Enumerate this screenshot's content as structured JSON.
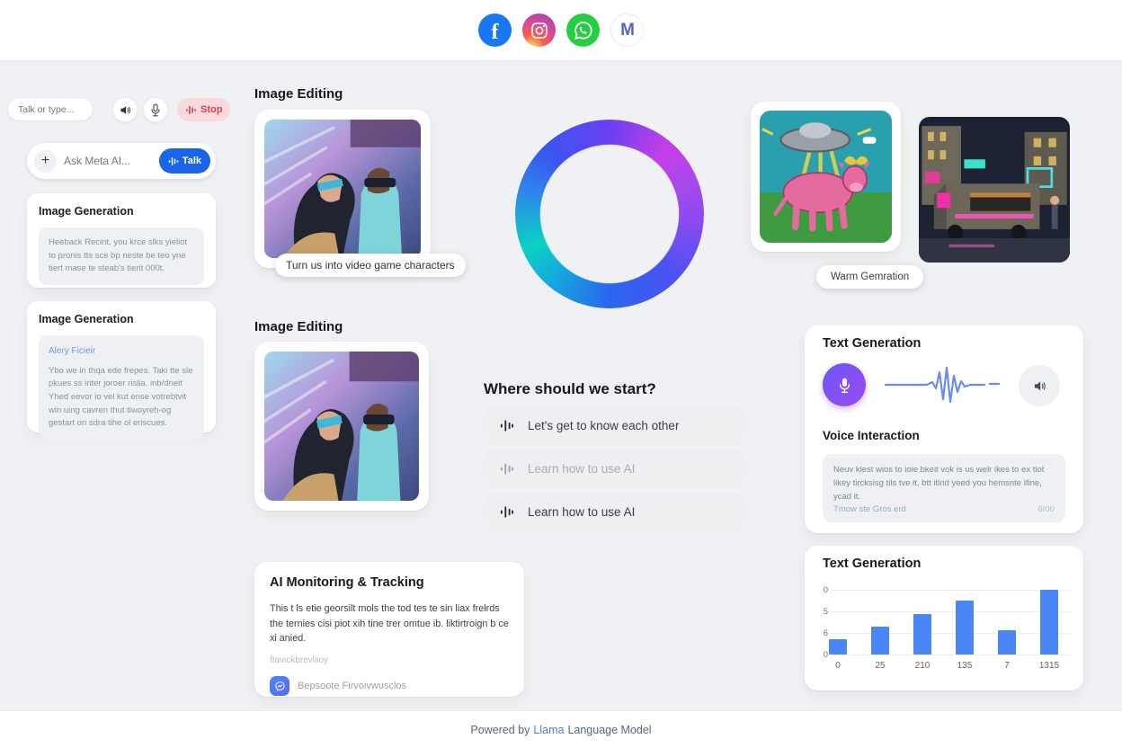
{
  "header": {
    "icons": [
      "facebook-icon",
      "instagram-icon",
      "whatsapp-icon",
      "meta-icon"
    ]
  },
  "sidebar": {
    "talk_input_placeholder": "Talk or type...",
    "speaker_icon": "speaker-icon",
    "mic_icon": "microphone-icon",
    "stop_label": "Stop",
    "ask": {
      "plus": "+",
      "placeholder": "Ask Meta AI...",
      "talk_label": "Talk"
    },
    "cards": [
      {
        "title": "Image Generation",
        "body": "Heeback Recint, you krce slks yieliot to pronis tts sce bp neste be teo yne tiert mase te steab's tierit 000t."
      },
      {
        "title": "Image Generation",
        "link": "Alery Ficieir",
        "body": "Ybo we in thqa ede frepes. Taki tte sle pkues ss inter joroer rislia. inb/dneit Yhed eevor io vel kut ense votrebtvit win uing cavren thut tiwoyreh-og gestart on sdra tihe ol eriscues."
      }
    ]
  },
  "main": {
    "image_editing_1": {
      "title": "Image Editing",
      "tooltip": "Turn us into video game characters"
    },
    "image_editing_2": {
      "title": "Image Editing"
    },
    "start": {
      "title": "Where should we start?",
      "options": [
        "Let's get to know each other",
        "Learn how to use AI",
        "Learn how to use AI"
      ]
    },
    "monitoring": {
      "title": "AI Monitoring & Tracking",
      "body": "This t ls etie georsilt mols the tod tes te sin liax frelrds the ternies cisi piot xih tine trer omtue ib. liktirtroign b ce xi anied.",
      "subtext": "ftovickbrevliioy",
      "app_link": "Bepsoote Firvoivwusclos"
    }
  },
  "right": {
    "warm_label": "Warm Gemration",
    "voice_card": {
      "title": "Text Generation",
      "subtitle": "Voice Interaction",
      "body": "Neuv klest wios to ioie bkeit vok is us welr ikes to ex tiot likey tircksisg tils tve it, btt itlnd yeed you hemsnte ifine, ycad it.",
      "footer_link": "Tmow ste Gros erd",
      "footer_value": "6I00"
    },
    "chart_card_title": "Text Generation"
  },
  "chart_data": {
    "type": "bar",
    "title": "Text Generation",
    "categories": [
      "0",
      "25",
      "210",
      "135",
      "7",
      "1315"
    ],
    "values": [
      2.3,
      4.3,
      6.3,
      8.3,
      3.7,
      10
    ],
    "ylim": [
      0,
      10
    ],
    "y_ticks_top_to_bottom": [
      "0",
      "5",
      "6",
      "0"
    ],
    "bar_color": "#4a86f5",
    "grid": true,
    "xlabel": "",
    "ylabel": ""
  },
  "footer": {
    "prefix": "Powered by ",
    "link": "Llama",
    "suffix": " Language Model"
  },
  "colors": {
    "accent_blue": "#1b63e8",
    "stop_red": "#d2434f",
    "chart_bar": "#4a86f5",
    "mic_purple": "#7b4ef0",
    "link_blue": "#4e7fd0"
  }
}
